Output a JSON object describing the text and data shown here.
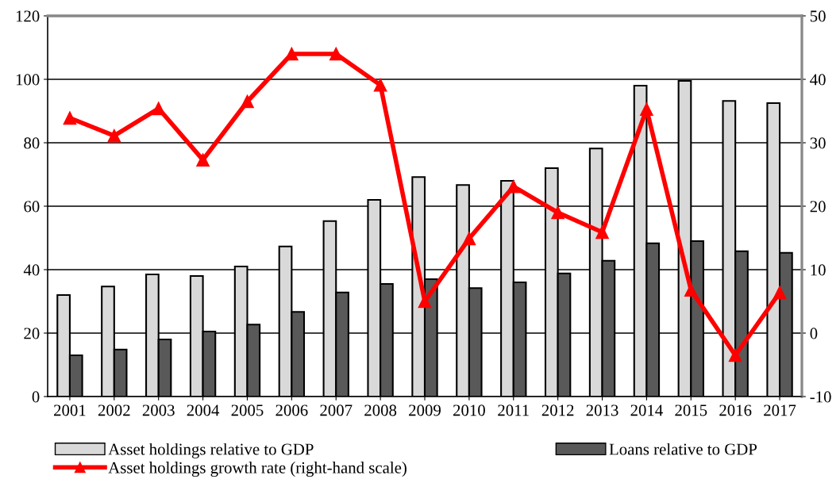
{
  "chart_data": {
    "type": "bar",
    "categories": [
      "2001",
      "2002",
      "2003",
      "2004",
      "2005",
      "2006",
      "2007",
      "2008",
      "2009",
      "2010",
      "2011",
      "2012",
      "2013",
      "2014",
      "2015",
      "2016",
      "2017"
    ],
    "series": [
      {
        "name": "Asset holdings relative to GDP",
        "color": "#d9d9d9",
        "values": [
          32,
          34.7,
          38.5,
          38,
          41,
          47.3,
          55.3,
          62,
          69.2,
          66.7,
          68,
          72,
          78.2,
          98,
          99.5,
          93.2,
          92.5
        ]
      },
      {
        "name": "Loans relative to GDP",
        "color": "#595959",
        "values": [
          13,
          14.8,
          18,
          20.5,
          22.7,
          26.7,
          32.8,
          35.5,
          37,
          34.2,
          36,
          38.8,
          42.8,
          48.3,
          49,
          45.8,
          45.3
        ]
      },
      {
        "name": "Asset holdings growth rate (right-hand scale)",
        "type": "line",
        "axis": "y2",
        "color": "#ff0000",
        "marker": "triangle",
        "values": [
          33.9,
          31.1,
          35.4,
          27.3,
          36.5,
          44,
          44,
          39.1,
          5,
          14.9,
          23.1,
          19,
          15.9,
          35.3,
          6.8,
          -3.5,
          6.4
        ]
      }
    ],
    "ylim": [
      0,
      120
    ],
    "yticks": [
      0,
      20,
      40,
      60,
      80,
      100,
      120
    ],
    "y2lim": [
      -10,
      50
    ],
    "y2ticks": [
      -10,
      0,
      10,
      20,
      30,
      40,
      50
    ],
    "grid": "y",
    "legend": "bottom"
  }
}
